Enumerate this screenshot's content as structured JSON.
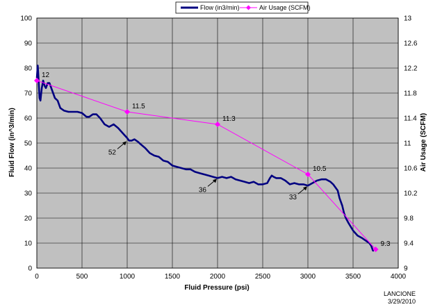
{
  "chart_data": {
    "type": "line",
    "legend_position": "top-center",
    "grid": true,
    "colors": {
      "flow": "#000080",
      "air": "#ff00ff",
      "plot_bg": "#c0c0c0",
      "grid": "#000000"
    },
    "x_axis": {
      "label": "Fluid Pressure (psi)",
      "range": [
        0,
        4000
      ],
      "ticks": [
        "0",
        "500",
        "1000",
        "1500",
        "2000",
        "2500",
        "3000",
        "3500",
        "4000"
      ]
    },
    "y_axis_left": {
      "label": "Fluid Flow (in^3/min)",
      "range": [
        0,
        100
      ],
      "ticks": [
        "0",
        "10",
        "20",
        "30",
        "40",
        "50",
        "60",
        "70",
        "80",
        "90",
        "100"
      ]
    },
    "y_axis_right": {
      "label": "Air Usage (SCFM)",
      "range": [
        9,
        13
      ],
      "ticks": [
        "9",
        "9.4",
        "9.8",
        "10.2",
        "10.6",
        "11",
        "11.4",
        "11.8",
        "12.2",
        "12.6",
        "13"
      ]
    },
    "series": [
      {
        "name": "Flow (in3/min)",
        "axis": "left",
        "x": [
          0,
          10,
          20,
          30,
          40,
          55,
          70,
          85,
          100,
          120,
          140,
          160,
          180,
          200,
          230,
          260,
          300,
          350,
          400,
          450,
          500,
          550,
          580,
          620,
          660,
          700,
          750,
          800,
          850,
          900,
          950,
          1000,
          1020,
          1050,
          1080,
          1120,
          1150,
          1200,
          1250,
          1300,
          1350,
          1400,
          1450,
          1500,
          1550,
          1600,
          1650,
          1700,
          1750,
          1800,
          1850,
          1900,
          1950,
          2000,
          2050,
          2100,
          2150,
          2200,
          2250,
          2300,
          2350,
          2400,
          2450,
          2500,
          2550,
          2580,
          2600,
          2620,
          2650,
          2700,
          2750,
          2800,
          2850,
          2900,
          2950,
          3000,
          3050,
          3100,
          3150,
          3200,
          3250,
          3280,
          3300,
          3330,
          3350,
          3380,
          3400,
          3420,
          3450,
          3500,
          3550,
          3600,
          3640,
          3680,
          3700,
          3710,
          3720,
          3730
        ],
        "values": [
          76,
          81,
          75,
          68,
          67,
          72,
          75,
          73,
          72,
          74,
          74,
          72,
          70,
          68,
          67,
          64,
          63,
          62.5,
          62.5,
          62.5,
          62,
          60.5,
          60.5,
          61.5,
          61.5,
          60,
          57.5,
          56.5,
          57.5,
          56,
          54,
          52,
          51,
          51,
          51.5,
          50.5,
          49.5,
          48,
          46,
          45,
          44.5,
          43,
          42.5,
          41,
          40.5,
          40,
          39.5,
          39.5,
          38.5,
          38,
          37.5,
          37,
          36.5,
          36,
          36.5,
          36,
          36.5,
          35.5,
          35,
          34.5,
          34,
          34.5,
          33.5,
          33.5,
          34,
          36,
          37,
          36.5,
          36,
          36,
          35,
          33.5,
          34,
          33.5,
          33.5,
          33,
          34,
          35,
          35.5,
          35.5,
          34.5,
          33.5,
          32.5,
          31,
          28,
          25,
          22,
          20,
          18,
          15,
          13,
          12,
          11,
          10,
          9,
          8,
          7,
          7
        ]
      },
      {
        "name": "Air Usage (SCFM)",
        "axis": "right",
        "x": [
          0,
          1000,
          2000,
          3000,
          3750
        ],
        "values": [
          12,
          11.5,
          11.3,
          10.5,
          9.3
        ],
        "data_labels": [
          "12",
          "11.5",
          "11.3",
          "10.5",
          "9.3"
        ]
      }
    ],
    "annotations": [
      {
        "text": "52",
        "x": 1000,
        "y": 51
      },
      {
        "text": "36",
        "x": 2000,
        "y": 36
      },
      {
        "text": "33",
        "x": 3000,
        "y": 33
      }
    ]
  },
  "footer": {
    "name": "LANCIONE",
    "date": "3/29/2010"
  }
}
